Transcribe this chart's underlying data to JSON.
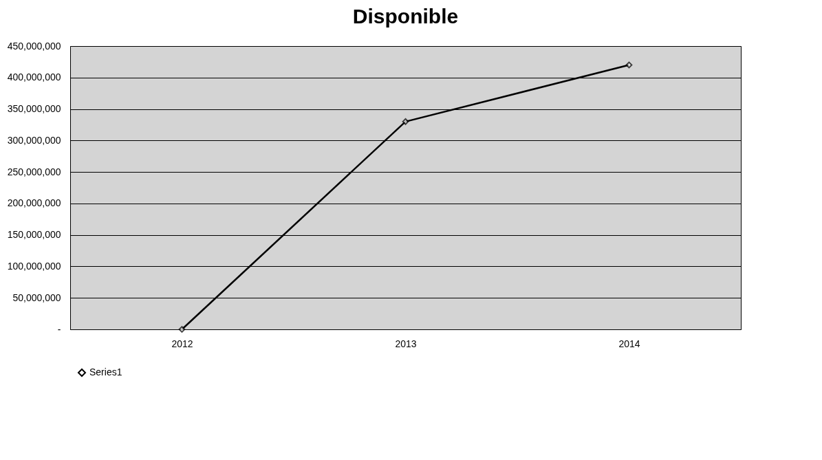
{
  "chart_data": {
    "type": "line",
    "title": "Disponible",
    "categories": [
      "2012",
      "2013",
      "2014"
    ],
    "series": [
      {
        "name": "Series1",
        "color": "#000000",
        "values": [
          0,
          330000000,
          420000000
        ]
      }
    ],
    "ylim": [
      0,
      450000000
    ],
    "yticks": [
      {
        "value": 0,
        "label": "-"
      },
      {
        "value": 50000000,
        "label": "50,000,000"
      },
      {
        "value": 100000000,
        "label": "100,000,000"
      },
      {
        "value": 150000000,
        "label": "150,000,000"
      },
      {
        "value": 200000000,
        "label": "200,000,000"
      },
      {
        "value": 250000000,
        "label": "250,000,000"
      },
      {
        "value": 300000000,
        "label": "300,000,000"
      },
      {
        "value": 350000000,
        "label": "350,000,000"
      },
      {
        "value": 400000000,
        "label": "400,000,000"
      },
      {
        "value": 450000000,
        "label": "450,000,000"
      }
    ],
    "grid": "y",
    "legend": "bottom",
    "marker": "diamond",
    "line_style": "solid"
  }
}
